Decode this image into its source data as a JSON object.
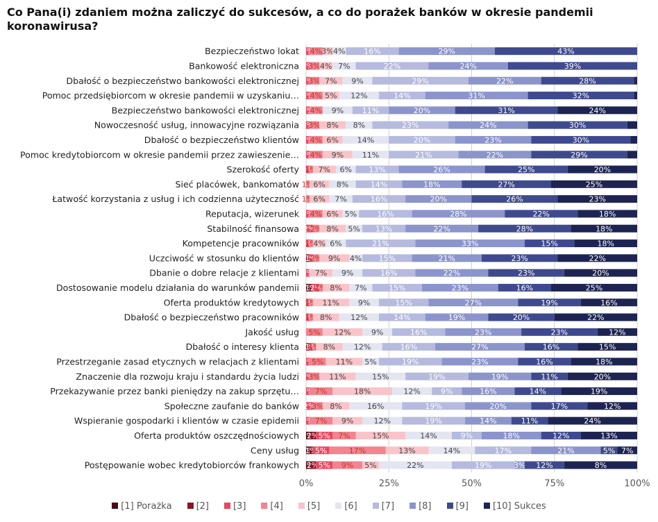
{
  "chart_data": {
    "type": "bar",
    "orientation": "horizontal",
    "stacked": true,
    "title": "Co Pana(i) zdaniem można zaliczyć do sukcesów, a co do porażek banków w okresie pandemii koronawirusa?",
    "categories": [
      "Bezpieczeństwo lokat",
      "Bankowość elektroniczna",
      "Dbałość o bezpieczeństwo bankowości elektronicznej",
      "Pomoc przedsiębiorcom w okresie pandemii w uzyskaniu…",
      "Bezpieczeństwo bankowości elektronicznej",
      "Nowoczesność usług, innowacyjne rozwiązania",
      "Dbałość o bezpieczeństwo klientów",
      "Pomoc kredytobiorcom w okresie pandemii przez zawieszenie…",
      "Szerokość oferty",
      "Sieć placówek, bankomatów",
      "Łatwość korzystania z usług i ich codzienna użyteczność",
      "Reputacja, wizerunek",
      "Stabilność finansowa",
      "Kompetencje pracowników",
      "Uczciwość w stosunku do klientów",
      "Dbanie o dobre relacje z klientami",
      "Dostosowanie modelu działania do warunków pandemii",
      "Oferta produktów kredytowych",
      "Dbałość o bezpieczeństwo pracowników",
      "Jakość usług",
      "Dbałość o interesy klienta",
      "Przestrzeganie zasad etycznych w relacjach z klientami",
      "Znaczenie dla rozwoju kraju i standardu życia ludzi",
      "Przekazywanie przez banki pieniędzy na zakup sprzętu…",
      "Społeczne zaufanie do banków",
      "Wspieranie gospodarki i klientów w czasie epidemii",
      "Oferta produktów oszczędnościowych",
      "Ceny usług",
      "Postępowanie wobec kredytobiorców frankowych"
    ],
    "series": [
      {
        "name": "[1] Porażka",
        "color": "#4d0a12",
        "values": [
          0,
          0,
          0,
          0,
          0,
          0,
          0,
          0,
          0,
          0,
          0,
          0,
          0,
          0,
          0,
          0,
          1,
          0,
          0,
          0,
          0,
          0,
          0,
          0,
          0,
          0,
          1,
          1,
          1
        ]
      },
      {
        "name": "[2]",
        "color": "#8c1325",
        "values": [
          0,
          0,
          0,
          0,
          0,
          0,
          0,
          0,
          0,
          0,
          0,
          0,
          0,
          0,
          1,
          0,
          1,
          0,
          0,
          0,
          1,
          0,
          0,
          0,
          0,
          0,
          2,
          1,
          2
        ]
      },
      {
        "name": "[3]",
        "color": "#e8475f",
        "values": [
          1,
          1,
          1,
          1,
          1,
          1,
          1,
          1,
          1,
          0,
          0,
          1,
          2,
          1,
          1,
          1,
          2,
          1,
          1,
          0,
          1,
          1,
          1,
          1,
          2,
          1,
          5,
          5,
          5
        ]
      },
      {
        "name": "[4]",
        "color": "#f2838f",
        "values": [
          4,
          3,
          3,
          4,
          4,
          3,
          4,
          4,
          1,
          1,
          1,
          4,
          2,
          1,
          2,
          0,
          1,
          1,
          1,
          5,
          1,
          5,
          3,
          7,
          3,
          7,
          7,
          17,
          9
        ]
      },
      {
        "name": "[5]",
        "color": "#f9c4c9",
        "values": [
          3,
          4,
          7,
          5,
          0,
          8,
          6,
          9,
          7,
          6,
          6,
          6,
          8,
          4,
          9,
          7,
          8,
          11,
          8,
          12,
          8,
          11,
          11,
          18,
          8,
          9,
          15,
          13,
          5
        ]
      },
      {
        "name": "[6]",
        "color": "#e3e5f1",
        "values": [
          4,
          7,
          9,
          12,
          9,
          8,
          14,
          11,
          6,
          8,
          7,
          5,
          5,
          6,
          4,
          9,
          7,
          9,
          12,
          9,
          12,
          5,
          15,
          12,
          16,
          12,
          14,
          14,
          22
        ]
      },
      {
        "name": "[7]",
        "color": "#b5bade",
        "values": [
          16,
          22,
          29,
          14,
          11,
          23,
          20,
          21,
          13,
          14,
          16,
          16,
          13,
          21,
          15,
          16,
          15,
          15,
          14,
          16,
          16,
          19,
          19,
          9,
          19,
          19,
          9,
          17,
          19
        ]
      },
      {
        "name": "[8]",
        "color": "#8c94cc",
        "values": [
          29,
          24,
          22,
          31,
          20,
          24,
          23,
          22,
          26,
          18,
          20,
          28,
          22,
          33,
          21,
          22,
          23,
          27,
          19,
          23,
          27,
          23,
          19,
          16,
          20,
          14,
          18,
          21,
          3
        ]
      },
      {
        "name": "[9]",
        "color": "#3f4a8e",
        "values": [
          43,
          39,
          28,
          32,
          31,
          30,
          30,
          29,
          25,
          27,
          26,
          22,
          28,
          15,
          23,
          23,
          16,
          19,
          20,
          23,
          16,
          16,
          11,
          14,
          17,
          11,
          12,
          5,
          12
        ]
      },
      {
        "name": "[10] Sukces",
        "color": "#1e2452",
        "values": [
          0,
          0,
          0,
          0,
          24,
          0,
          0,
          0,
          20,
          25,
          23,
          18,
          18,
          18,
          22,
          20,
          25,
          16,
          22,
          12,
          15,
          18,
          20,
          19,
          12,
          24,
          13,
          7,
          8
        ]
      }
    ],
    "xlim": [
      0,
      100
    ],
    "xticks": [
      "0%",
      "25%",
      "50%",
      "75%",
      "100%"
    ],
    "legend_position": "bottom",
    "grid": true
  }
}
